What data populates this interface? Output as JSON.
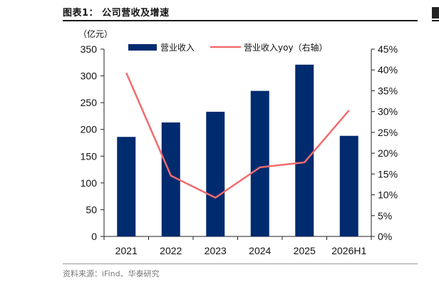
{
  "figure_title": "图表1： 公司营收及增速",
  "source": "资料来源：iFind、华泰研究",
  "chart_data": {
    "type": "bar",
    "categories": [
      "2021",
      "2022",
      "2023",
      "2024",
      "2025",
      "2026H1"
    ],
    "series": [
      {
        "name": "营业收入",
        "type": "bar",
        "axis": "left",
        "color": "#002b6e",
        "values": [
          186,
          213,
          233,
          272,
          321,
          188
        ]
      },
      {
        "name": "营业收入yoy（右轴）",
        "type": "line",
        "axis": "right",
        "color": "#f26b6e",
        "values": [
          0.393,
          0.146,
          0.093,
          0.166,
          0.178,
          0.303
        ]
      }
    ],
    "left_axis": {
      "unit": "（亿元）",
      "ylim": [
        0,
        350
      ],
      "ticks": [
        "0",
        "50",
        "100",
        "150",
        "200",
        "250",
        "300",
        "350"
      ]
    },
    "right_axis": {
      "ylim": [
        0,
        0.45
      ],
      "ticks": [
        "0%",
        "5%",
        "10%",
        "15%",
        "20%",
        "25%",
        "30%",
        "35%",
        "40%",
        "45%"
      ]
    },
    "legend_position": "top",
    "grid": false
  }
}
